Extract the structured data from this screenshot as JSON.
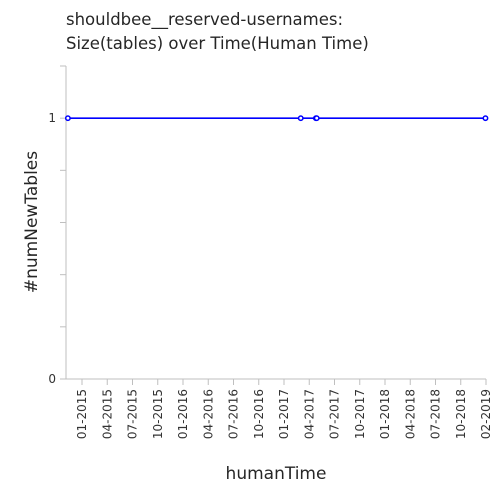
{
  "chart_data": {
    "type": "line",
    "title": [
      "shouldbee__reserved-usernames:",
      "Size(tables) over Time(Human Time)"
    ],
    "xlabel": "humanTime",
    "ylabel": "#numNewTables",
    "x_tick_labels": [
      "01-2015",
      "04-2015",
      "07-2015",
      "10-2015",
      "01-2016",
      "04-2016",
      "07-2016",
      "10-2016",
      "01-2017",
      "04-2017",
      "07-2017",
      "10-2017",
      "01-2018",
      "04-2018",
      "07-2018",
      "10-2018",
      "02-2019"
    ],
    "y_tick_labels": [
      "0",
      "1"
    ],
    "ylim": [
      0,
      1.2
    ],
    "xlim": [
      "2014-11-10",
      "2019-02-10"
    ],
    "series": [
      {
        "color": "#0000ff",
        "x": [
          "2014-11-17",
          "2017-03-27",
          "2017-05-22",
          "2017-05-25",
          "2019-02-08"
        ],
        "y": [
          1,
          1,
          1,
          1,
          1
        ]
      }
    ],
    "grid": false
  }
}
